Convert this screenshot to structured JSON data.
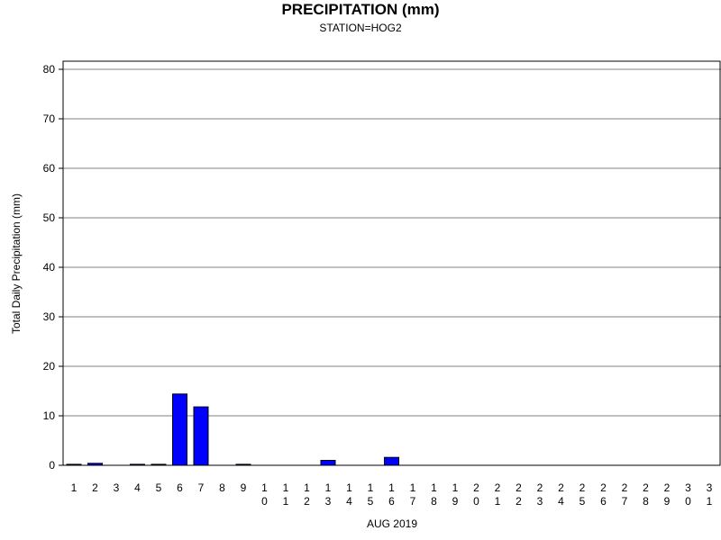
{
  "chart_data": {
    "type": "bar",
    "title": "PRECIPITATION (mm)",
    "subtitle": "STATION=HOG2",
    "xlabel": "AUG 2019",
    "ylabel": "Total Daily Precipitation (mm)",
    "ylim": [
      0,
      80
    ],
    "yticks": [
      0,
      10,
      20,
      30,
      40,
      50,
      60,
      70,
      80
    ],
    "grid": true,
    "bar_color": "#0000ff",
    "categories": [
      "1",
      "2",
      "3",
      "4",
      "5",
      "6",
      "7",
      "8",
      "9",
      "10",
      "11",
      "12",
      "13",
      "14",
      "15",
      "16",
      "17",
      "18",
      "19",
      "20",
      "21",
      "22",
      "23",
      "24",
      "25",
      "26",
      "27",
      "28",
      "29",
      "30",
      "31"
    ],
    "values": [
      0.2,
      0.4,
      0,
      0.2,
      0.2,
      14.4,
      11.8,
      0,
      0.2,
      0,
      0,
      0,
      1.0,
      0,
      0,
      1.6,
      0,
      0,
      0,
      0,
      0,
      0,
      0,
      0,
      0,
      0,
      0,
      0,
      0,
      0,
      0
    ]
  }
}
